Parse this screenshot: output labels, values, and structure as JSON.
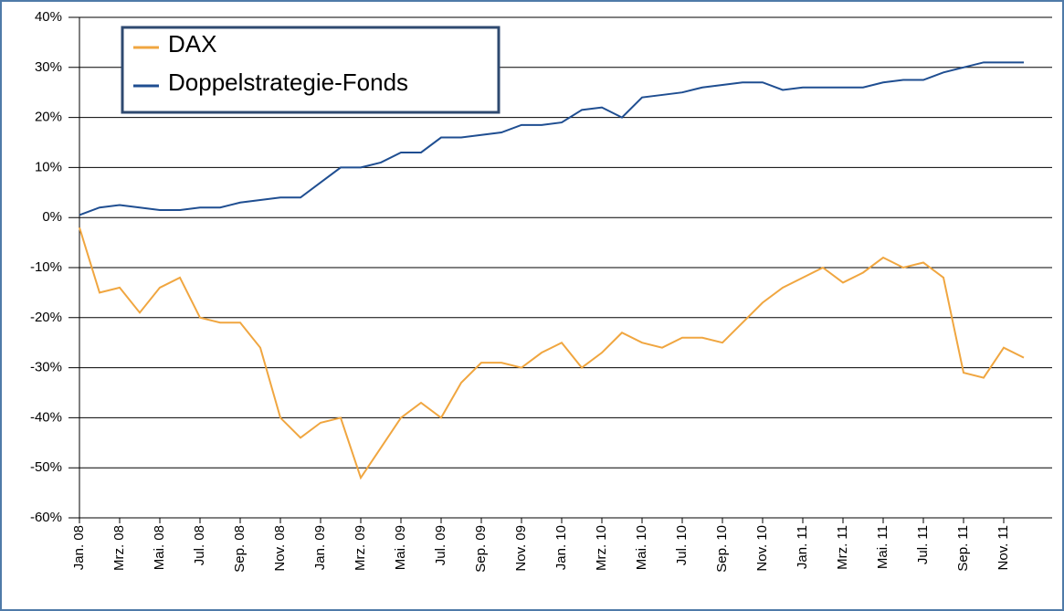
{
  "chart_data": {
    "type": "line",
    "categories": [
      "Jan. 08",
      null,
      "Mrz. 08",
      null,
      "Mai. 08",
      null,
      "Jul. 08",
      null,
      "Sep. 08",
      null,
      "Nov. 08",
      null,
      "Jan. 09",
      null,
      "Mrz. 09",
      null,
      "Mai. 09",
      null,
      "Jul. 09",
      null,
      "Sep. 09",
      null,
      "Nov. 09",
      null,
      "Jan. 10",
      null,
      "Mrz. 10",
      null,
      "Mai. 10",
      null,
      "Jul. 10",
      null,
      "Sep. 10",
      null,
      "Nov. 10",
      null,
      "Jan. 11",
      null,
      "Mrz. 11",
      null,
      "Mai. 11",
      null,
      "Jul. 11",
      null,
      "Sep. 11",
      null,
      "Nov. 11",
      null
    ],
    "series": [
      {
        "name": "DAX",
        "color": "#f0a640",
        "values": [
          -2,
          -15,
          -14,
          -19,
          -14,
          -12,
          -20,
          -21,
          -21,
          -26,
          -40,
          -44,
          -41,
          -40,
          -52,
          -46,
          -40,
          -37,
          -40,
          -33,
          -29,
          -29,
          -30,
          -27,
          -25,
          -30,
          -27,
          -23,
          -25,
          -26,
          -24,
          -24,
          -25,
          -21,
          -17,
          -14,
          -12,
          -10,
          -13,
          -11,
          -8,
          -10,
          -9,
          -12,
          -31,
          -32,
          -26,
          -28
        ]
      },
      {
        "name": "Doppelstrategie-Fonds",
        "color": "#1f4e91",
        "values": [
          0.5,
          2,
          2.5,
          2,
          1.5,
          1.5,
          2,
          2,
          3,
          3.5,
          4,
          4,
          7,
          10,
          10,
          11,
          13,
          13,
          16,
          16,
          16.5,
          17,
          18.5,
          18.5,
          19,
          21.5,
          22,
          20,
          24,
          24.5,
          25,
          26,
          26.5,
          27,
          27,
          25.5,
          26,
          26,
          26,
          26,
          27,
          27.5,
          27.5,
          29,
          30,
          31,
          31,
          31
        ]
      }
    ],
    "ylim": [
      -60,
      40
    ],
    "yticks": [
      {
        "value": 40,
        "label": "40%"
      },
      {
        "value": 30,
        "label": "30%"
      },
      {
        "value": 20,
        "label": "20%"
      },
      {
        "value": 10,
        "label": "10%"
      },
      {
        "value": 0,
        "label": "0%"
      },
      {
        "value": -10,
        "label": "-10%"
      },
      {
        "value": -20,
        "label": "-20%"
      },
      {
        "value": -30,
        "label": "-30%"
      },
      {
        "value": -40,
        "label": "-40%"
      },
      {
        "value": -50,
        "label": "-50%"
      },
      {
        "value": -60,
        "label": "-60%"
      }
    ],
    "grid": true,
    "legend": "upper left"
  }
}
